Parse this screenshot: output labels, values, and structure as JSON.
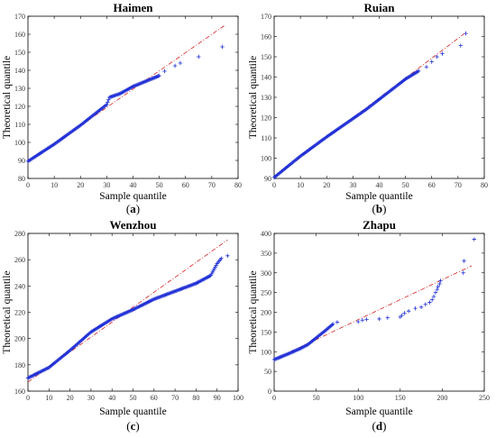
{
  "figure": {
    "panels_count": 4,
    "colors": {
      "points": "#1f2fd6",
      "reference_line": "#d62222",
      "axes": "#000000",
      "background": "#ffffff"
    },
    "marker_icon": "plus-marker-icon"
  },
  "chart_data": [
    {
      "type": "scatter",
      "title": "Haimen",
      "caption_prefix": "(",
      "caption_letter": "a",
      "caption_suffix": ")",
      "xlabel": "Sample quantile",
      "ylabel": "Theoretical quantile",
      "xlim": [
        0,
        80
      ],
      "ylim": [
        80,
        170
      ],
      "xticks": [
        0,
        10,
        20,
        30,
        40,
        50,
        60,
        70,
        80
      ],
      "yticks": [
        80,
        90,
        100,
        110,
        120,
        130,
        140,
        150,
        160,
        170
      ],
      "grid": false,
      "legend": false,
      "ref_line": {
        "x": [
          0,
          75
        ],
        "y": [
          89,
          165
        ]
      },
      "curve": [
        [
          0,
          89.5
        ],
        [
          10,
          99
        ],
        [
          20,
          109.5
        ],
        [
          30,
          121
        ],
        [
          31,
          125
        ],
        [
          35,
          127
        ],
        [
          40,
          131
        ],
        [
          45,
          134
        ],
        [
          50,
          137
        ]
      ],
      "outliers": [
        [
          52,
          139.5
        ],
        [
          56,
          142.5
        ],
        [
          58,
          144
        ],
        [
          65,
          147.5
        ],
        [
          74,
          153
        ]
      ]
    },
    {
      "type": "scatter",
      "title": "Ruian",
      "caption_prefix": "(",
      "caption_letter": "b",
      "caption_suffix": ")",
      "xlabel": "Sample quantile",
      "ylabel": "Theoretical quantile",
      "xlim": [
        0,
        80
      ],
      "ylim": [
        90,
        170
      ],
      "xticks": [
        0,
        10,
        20,
        30,
        40,
        50,
        60,
        70,
        80
      ],
      "yticks": [
        90,
        100,
        110,
        120,
        130,
        140,
        150,
        160,
        170
      ],
      "grid": false,
      "legend": false,
      "ref_line": {
        "x": [
          0,
          73
        ],
        "y": [
          90.5,
          162
        ]
      },
      "curve": [
        [
          0,
          90.5
        ],
        [
          10,
          101
        ],
        [
          20,
          110.5
        ],
        [
          30,
          119.5
        ],
        [
          35,
          124
        ],
        [
          40,
          129
        ],
        [
          45,
          134
        ],
        [
          50,
          139
        ],
        [
          55,
          143
        ]
      ],
      "outliers": [
        [
          58,
          145
        ],
        [
          60,
          147.5
        ],
        [
          62,
          150
        ],
        [
          64,
          151.5
        ],
        [
          71,
          155.5
        ],
        [
          73,
          161.5
        ]
      ]
    },
    {
      "type": "scatter",
      "title": "Wenzhou",
      "caption_prefix": "(",
      "caption_letter": "c",
      "caption_suffix": ")",
      "xlabel": "Sample quantile",
      "ylabel": "Theoretical quantile",
      "xlim": [
        0,
        100
      ],
      "ylim": [
        160,
        280
      ],
      "xticks": [
        0,
        10,
        20,
        30,
        40,
        50,
        60,
        70,
        80,
        90,
        100
      ],
      "yticks": [
        160,
        180,
        200,
        220,
        240,
        260,
        280
      ],
      "grid": false,
      "legend": false,
      "ref_line": {
        "x": [
          0,
          95
        ],
        "y": [
          167,
          275
        ]
      },
      "curve": [
        [
          0,
          170
        ],
        [
          10,
          178
        ],
        [
          20,
          191
        ],
        [
          30,
          205
        ],
        [
          40,
          215
        ],
        [
          50,
          222
        ],
        [
          55,
          226
        ],
        [
          60,
          230
        ],
        [
          70,
          236
        ],
        [
          80,
          242
        ],
        [
          87,
          248
        ],
        [
          90,
          257
        ],
        [
          92,
          261
        ]
      ],
      "outliers": [
        [
          95,
          263
        ]
      ]
    },
    {
      "type": "scatter",
      "title": "Zhapu",
      "caption_prefix": "(",
      "caption_letter": "d",
      "caption_suffix": ")",
      "xlabel": "Sample quantile",
      "ylabel": "Theoretical quantile",
      "xlim": [
        0,
        250
      ],
      "ylim": [
        0,
        400
      ],
      "xticks": [
        0,
        50,
        100,
        150,
        200,
        250
      ],
      "yticks": [
        0,
        50,
        100,
        150,
        200,
        250,
        300,
        350,
        400
      ],
      "grid": false,
      "legend": false,
      "ref_line": {
        "x": [
          0,
          235
        ],
        "y": [
          80,
          318
        ]
      },
      "curve": [
        [
          0,
          80
        ],
        [
          15,
          93
        ],
        [
          30,
          107
        ],
        [
          40,
          118
        ],
        [
          50,
          135
        ],
        [
          60,
          152
        ],
        [
          70,
          170
        ]
      ],
      "outliers": [
        [
          75,
          175
        ],
        [
          100,
          176
        ],
        [
          105,
          180
        ],
        [
          110,
          182
        ],
        [
          125,
          183
        ],
        [
          135,
          186
        ],
        [
          150,
          188
        ],
        [
          152,
          192
        ],
        [
          155,
          198
        ],
        [
          160,
          203
        ],
        [
          168,
          210
        ],
        [
          175,
          213
        ],
        [
          180,
          220
        ],
        [
          185,
          225
        ],
        [
          188,
          232
        ],
        [
          190,
          240
        ],
        [
          192,
          250
        ],
        [
          194,
          258
        ],
        [
          195,
          265
        ],
        [
          197,
          272
        ],
        [
          198,
          280
        ],
        [
          225,
          300
        ],
        [
          226,
          330
        ],
        [
          238,
          385
        ]
      ]
    }
  ]
}
